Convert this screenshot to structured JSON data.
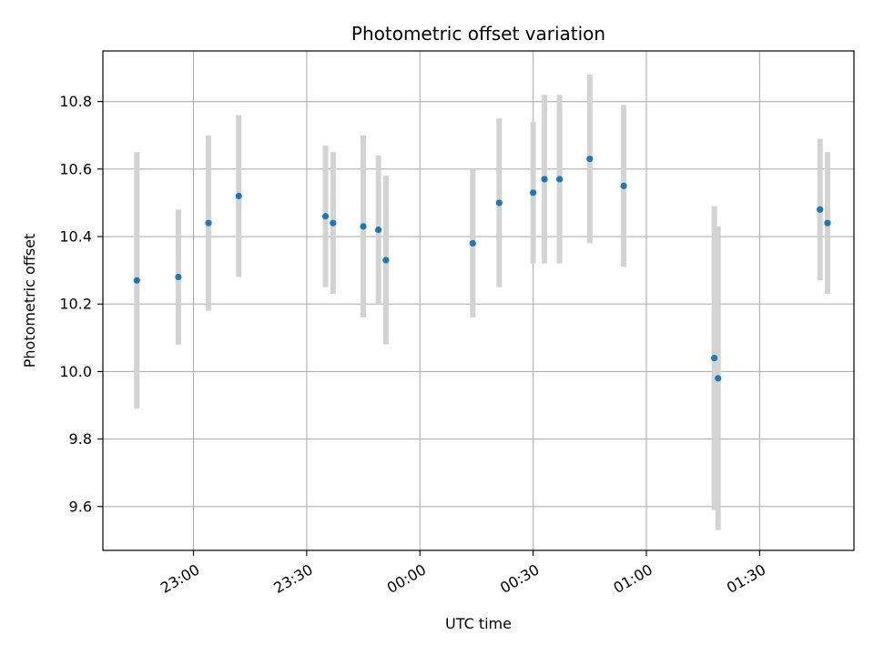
{
  "chart_data": {
    "type": "scatter",
    "title": "Photometric offset variation",
    "xlabel": "UTC time",
    "ylabel": "Photometric offset",
    "x_tick_labels": [
      "23:00",
      "23:30",
      "00:00",
      "00:30",
      "01:00",
      "01:30"
    ],
    "x_tick_times": [
      "23:00",
      "23:30",
      "00:00",
      "00:30",
      "01:00",
      "01:30"
    ],
    "xlim": [
      "22:36",
      "01:55"
    ],
    "ylim": [
      9.47,
      10.95
    ],
    "y_ticks": [
      9.6,
      9.8,
      10.0,
      10.2,
      10.4,
      10.6,
      10.8
    ],
    "y_tick_labels": [
      "9.6",
      "9.8",
      "10.0",
      "10.2",
      "10.4",
      "10.6",
      "10.8"
    ],
    "grid": true,
    "colors": {
      "point": "#1f77b4",
      "errorbar": "#d3d3d3",
      "grid": "#b0b0b0"
    },
    "series": [
      {
        "points": [
          {
            "x": "22:45",
            "y": 10.27,
            "err": 0.38
          },
          {
            "x": "22:56",
            "y": 10.28,
            "err": 0.2
          },
          {
            "x": "23:04",
            "y": 10.44,
            "err": 0.26
          },
          {
            "x": "23:12",
            "y": 10.52,
            "err": 0.24
          },
          {
            "x": "23:35",
            "y": 10.46,
            "err": 0.21
          },
          {
            "x": "23:37",
            "y": 10.44,
            "err": 0.21
          },
          {
            "x": "23:45",
            "y": 10.43,
            "err": 0.27
          },
          {
            "x": "23:49",
            "y": 10.42,
            "err": 0.22
          },
          {
            "x": "23:51",
            "y": 10.33,
            "err": 0.25
          },
          {
            "x": "00:14",
            "y": 10.38,
            "err": 0.22
          },
          {
            "x": "00:21",
            "y": 10.5,
            "err": 0.25
          },
          {
            "x": "00:30",
            "y": 10.53,
            "err": 0.21
          },
          {
            "x": "00:33",
            "y": 10.57,
            "err": 0.25
          },
          {
            "x": "00:37",
            "y": 10.57,
            "err": 0.25
          },
          {
            "x": "00:45",
            "y": 10.63,
            "err": 0.25
          },
          {
            "x": "00:54",
            "y": 10.55,
            "err": 0.24
          },
          {
            "x": "01:18",
            "y": 10.04,
            "err": 0.45
          },
          {
            "x": "01:19",
            "y": 9.98,
            "err": 0.45
          },
          {
            "x": "01:46",
            "y": 10.48,
            "err": 0.21
          },
          {
            "x": "01:48",
            "y": 10.44,
            "err": 0.21
          }
        ]
      }
    ]
  }
}
